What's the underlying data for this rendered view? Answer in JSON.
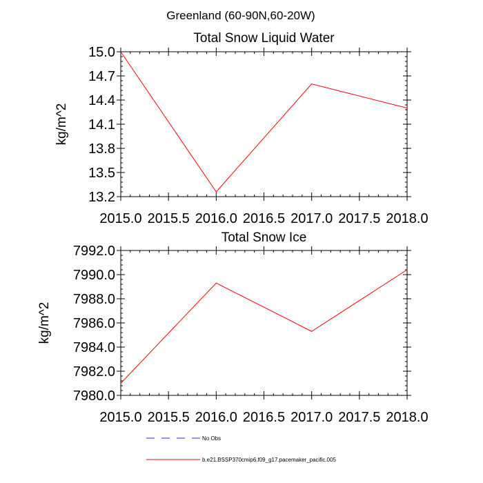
{
  "figure_title": "Greenland (60-90N,60-20W)",
  "chart_data": [
    {
      "type": "line",
      "title": "Total Snow Liquid Water",
      "xlabel": "",
      "ylabel": "kg/m^2",
      "xlim": [
        2015.0,
        2018.0
      ],
      "ylim": [
        13.2,
        15.0
      ],
      "xticks": [
        "2015.0",
        "2015.5",
        "2016.0",
        "2016.5",
        "2017.0",
        "2017.5",
        "2018.0"
      ],
      "yticks": [
        "13.2",
        "13.5",
        "13.8",
        "14.1",
        "14.4",
        "14.7",
        "15.0"
      ],
      "series": [
        {
          "name": "b.e21.BSSP370cmip6.f09_g17.pacemaker_pacific.005",
          "color": "#ff0000",
          "x": [
            2015.0,
            2016.0,
            2017.0,
            2018.0
          ],
          "y": [
            15.0,
            13.26,
            14.6,
            14.3
          ]
        }
      ]
    },
    {
      "type": "line",
      "title": "Total Snow Ice",
      "xlabel": "",
      "ylabel": "kg/m^2",
      "xlim": [
        2015.0,
        2018.0
      ],
      "ylim": [
        7980.0,
        7992.0
      ],
      "xticks": [
        "2015.0",
        "2015.5",
        "2016.0",
        "2016.5",
        "2017.0",
        "2017.5",
        "2018.0"
      ],
      "yticks": [
        "7980.0",
        "7982.0",
        "7984.0",
        "7986.0",
        "7988.0",
        "7990.0",
        "7992.0"
      ],
      "series": [
        {
          "name": "b.e21.BSSP370cmip6.f09_g17.pacemaker_pacific.005",
          "color": "#ff0000",
          "x": [
            2015.0,
            2016.0,
            2017.0,
            2018.0
          ],
          "y": [
            7981.0,
            7989.3,
            7985.3,
            7990.4
          ]
        }
      ]
    }
  ],
  "legend": [
    {
      "label": "No Obs",
      "color": "#2b2bd8",
      "style": "dashed"
    },
    {
      "label": "b.e21.BSSP370cmip6.f09_g17.pacemaker_pacific.005",
      "color": "#ff0000",
      "style": "solid"
    }
  ]
}
